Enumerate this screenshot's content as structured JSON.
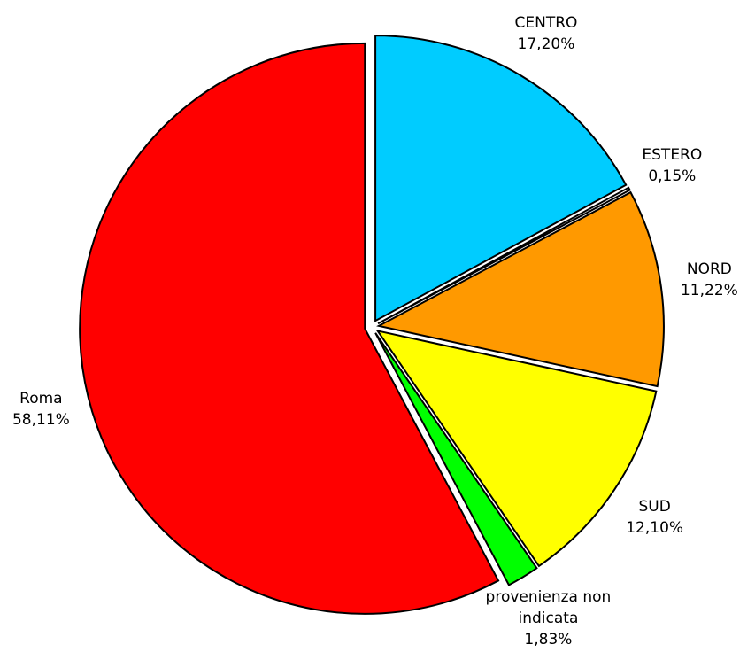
{
  "chart_data": {
    "type": "pie",
    "categories": [
      "CENTRO",
      "ESTERO",
      "NORD",
      "SUD",
      "provenienza non indicata",
      "Roma"
    ],
    "values": [
      17.2,
      0.15,
      11.22,
      12.1,
      1.83,
      58.11
    ],
    "value_labels": [
      "17,20%",
      "0,15%",
      "11,22%",
      "12,10%",
      "1,83%",
      "58,11%"
    ],
    "colors": [
      "#00ccff",
      "#ffffff",
      "#ff9900",
      "#ffff00",
      "#00ff00",
      "#ff0000"
    ]
  }
}
